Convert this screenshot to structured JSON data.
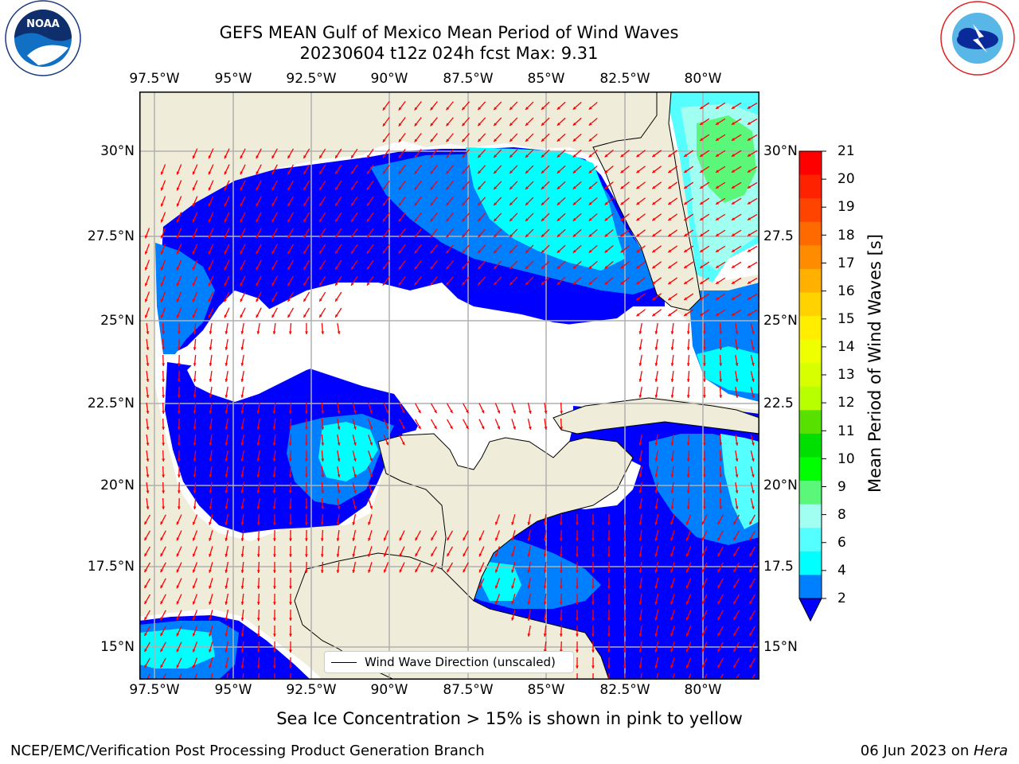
{
  "header": {
    "title_line1": "GEFS MEAN Gulf of Mexico Mean Period of Wind Waves",
    "title_line2": "20230604 t12z 024h fcst   Max: 9.31"
  },
  "logos": {
    "left": {
      "name": "NOAA",
      "ring_text": "NATIONAL OCEANIC AND ATMOSPHERIC ADMINISTRATION",
      "ring_text_bottom": "U.S. DEPARTMENT OF COMMERCE"
    },
    "right": {
      "ring_text": "NATIONAL WEATHER SERVICE"
    }
  },
  "map": {
    "lon_ticks": [
      "97.5°W",
      "95°W",
      "92.5°W",
      "90°W",
      "87.5°W",
      "85°W",
      "82.5°W",
      "80°W"
    ],
    "lat_ticks_left": [
      "30°N",
      "27.5°N",
      "25°N",
      "22.5°N",
      "20°N",
      "17.5°N",
      "15°N"
    ],
    "lat_ticks_right": [
      "30°N",
      "27.5",
      "25°N",
      "22.5",
      "20°N",
      "17.5",
      "15°N"
    ],
    "legend_label": "Wind Wave Direction (unscaled)",
    "colors": {
      "land": "#efedd9",
      "water_mask": "#ffffff",
      "grid": "#b0b0b0",
      "arrow": "#ff0000",
      "coast": "#000000"
    }
  },
  "colorbar": {
    "title": "Mean Period of Wind Waves [s]",
    "labels": [
      "21",
      "20",
      "19",
      "18",
      "17",
      "16",
      "15",
      "14",
      "13",
      "12",
      "11",
      "10",
      "9",
      "8",
      "6",
      "4",
      "2"
    ],
    "colors": [
      "#ff0000",
      "#ff2200",
      "#ff4400",
      "#ff6a00",
      "#ff8c00",
      "#ffb000",
      "#ffd200",
      "#ffee00",
      "#f0ff00",
      "#d8ff00",
      "#b8ff00",
      "#58e000",
      "#00e000",
      "#00ff00",
      "#5af77a",
      "#a0fff0",
      "#55ffff",
      "#00ffff",
      "#007fff",
      "#0000ff"
    ]
  },
  "footer": {
    "note": "Sea Ice Concentration > 15% is shown in pink to yellow",
    "credit": "NCEP/EMC/Verification Post Processing Product Generation Branch",
    "date": "06 Jun 2023 on ",
    "host": "Hera"
  }
}
